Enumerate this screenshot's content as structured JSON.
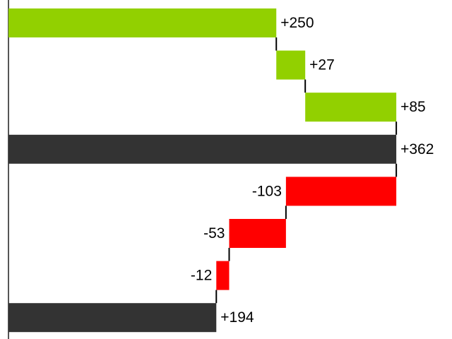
{
  "chart_data": {
    "type": "waterfall",
    "orientation": "horizontal",
    "values": [
      250,
      27,
      85,
      362,
      -103,
      -53,
      -12,
      194
    ],
    "value_labels": [
      "+250",
      "+27",
      "+85",
      "+362",
      "-103",
      "-53",
      "-12",
      "+194"
    ],
    "measures": [
      "relative",
      "relative",
      "relative",
      "total",
      "relative",
      "relative",
      "relative",
      "total"
    ],
    "colors": {
      "increase": "#92d000",
      "decrease": "#ff0000",
      "total": "#333333"
    },
    "xlim": [
      0,
      414
    ]
  }
}
